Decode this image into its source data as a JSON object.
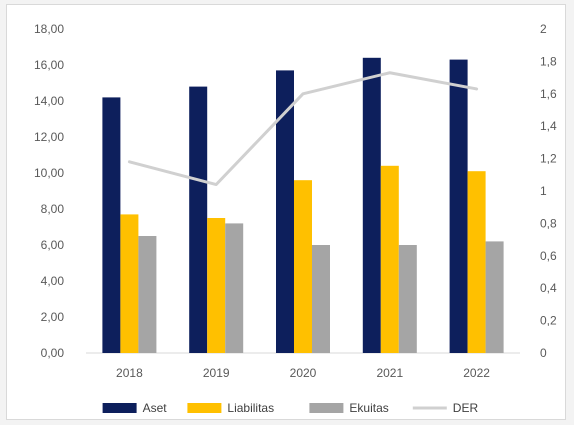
{
  "chart_data": {
    "type": "bar",
    "categories": [
      "2018",
      "2019",
      "2020",
      "2021",
      "2022"
    ],
    "series": [
      {
        "name": "Aset",
        "kind": "bar",
        "axis": "left",
        "color": "#0d1f5c",
        "values": [
          14.2,
          14.8,
          15.7,
          16.4,
          16.3
        ]
      },
      {
        "name": "Liabilitas",
        "kind": "bar",
        "axis": "left",
        "color": "#ffc000",
        "values": [
          7.7,
          7.5,
          9.6,
          10.4,
          10.1
        ]
      },
      {
        "name": "Ekuitas",
        "kind": "bar",
        "axis": "left",
        "color": "#a5a5a5",
        "values": [
          6.5,
          7.2,
          6.0,
          6.0,
          6.2
        ]
      },
      {
        "name": "DER",
        "kind": "line",
        "axis": "right",
        "color": "#d0d0d0",
        "values": [
          1.18,
          1.04,
          1.6,
          1.73,
          1.63
        ]
      }
    ],
    "left_axis": {
      "ylim": [
        0,
        18
      ],
      "ticks": [
        "0,00",
        "2,00",
        "4,00",
        "6,00",
        "8,00",
        "10,00",
        "12,00",
        "14,00",
        "16,00",
        "18,00"
      ]
    },
    "right_axis": {
      "ylim": [
        0,
        2
      ],
      "ticks": [
        "0",
        "0,2",
        "0,4",
        "0,6",
        "0,8",
        "1",
        "1,2",
        "1,4",
        "1,6",
        "1,8",
        "2"
      ]
    },
    "legend": {
      "position": "bottom",
      "items": [
        "Aset",
        "Liabilitas",
        "Ekuitas",
        "DER"
      ]
    },
    "grid": false
  }
}
